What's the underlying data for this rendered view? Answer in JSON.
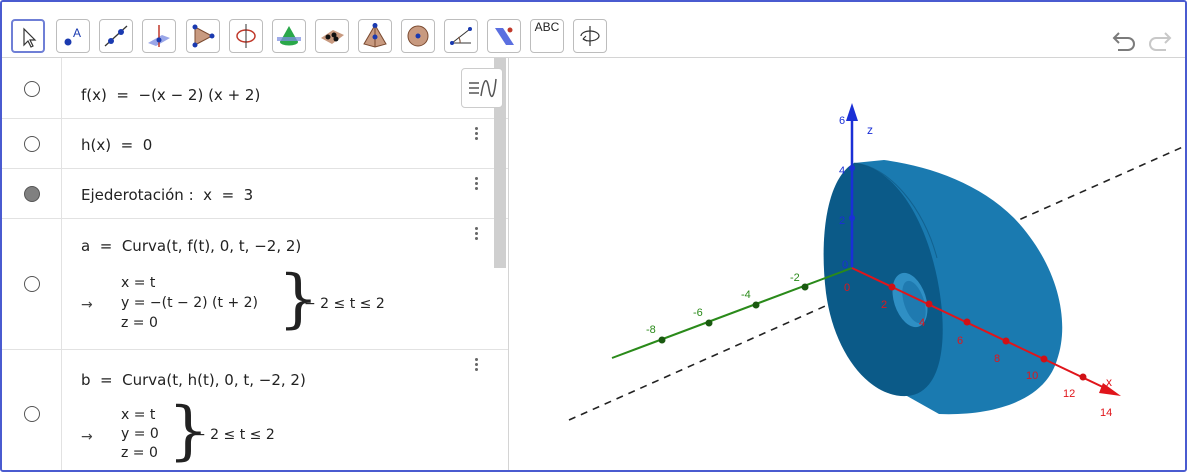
{
  "toolbar": {
    "tools": [
      {
        "name": "move-tool",
        "icon": "cursor-arrow-icon"
      },
      {
        "name": "point-tool",
        "icon": "point-a-icon",
        "label": "A"
      },
      {
        "name": "line-tool",
        "icon": "line-through-points-icon"
      },
      {
        "name": "perpendicular-tool",
        "icon": "perpendicular-plane-icon"
      },
      {
        "name": "polygon-tool",
        "icon": "triangle-icon"
      },
      {
        "name": "circle-axis-tool",
        "icon": "circle-with-axis-icon"
      },
      {
        "name": "intersect-tool",
        "icon": "cone-plane-icon"
      },
      {
        "name": "plane-tool",
        "icon": "plane-points-icon"
      },
      {
        "name": "pyramid-tool",
        "icon": "pyramid-icon"
      },
      {
        "name": "sphere-tool",
        "icon": "sphere-icon"
      },
      {
        "name": "angle-tool",
        "icon": "angle-icon"
      },
      {
        "name": "reflect-tool",
        "icon": "reflect-plane-icon"
      },
      {
        "name": "text-tool",
        "icon": "text-abc-icon",
        "label": "ABC"
      },
      {
        "name": "rotate-view-tool",
        "icon": "rotate-view-icon"
      }
    ],
    "undo_icon": "undo-icon",
    "redo_icon": "redo-icon"
  },
  "algebra": {
    "rows": [
      {
        "expr": "f(x)  =  −(x − 2) (x + 2)",
        "visible": false
      },
      {
        "expr": "h(x)  =  0",
        "visible": false
      },
      {
        "expr": "Ejederotación :  x  =  3",
        "visible": true
      },
      {
        "expr": "a  =  Curva(t, f(t), 0, t, −2, 2)",
        "visible": false,
        "param": [
          "x = t",
          "y = −(t − 2) (t + 2)",
          "z = 0"
        ],
        "range": "− 2 ≤ t ≤ 2"
      },
      {
        "expr": "b  =  Curva(t, h(t), 0, t, −2, 2)",
        "visible": false,
        "param": [
          "x = t",
          "y = 0",
          "z = 0"
        ],
        "range": "− 2 ≤ t ≤ 2"
      }
    ],
    "arrow": "→"
  },
  "graphics": {
    "axes": {
      "x_ticks": [
        "0",
        "2",
        "4",
        "6",
        "8",
        "10",
        "12",
        "14"
      ],
      "x_label": "x",
      "y_ticks": [
        "-2",
        "-4",
        "-6",
        "-8"
      ],
      "z_ticks": [
        "0",
        "2",
        "4",
        "6"
      ],
      "z_label": "z"
    },
    "colors": {
      "x_axis": "#e0151b",
      "y_axis": "#2a8a1a",
      "z_axis": "#1a2fd6",
      "solid": "#1a7ab0",
      "solid_dark": "#0b5a88",
      "dashed_line": "#222222"
    }
  }
}
